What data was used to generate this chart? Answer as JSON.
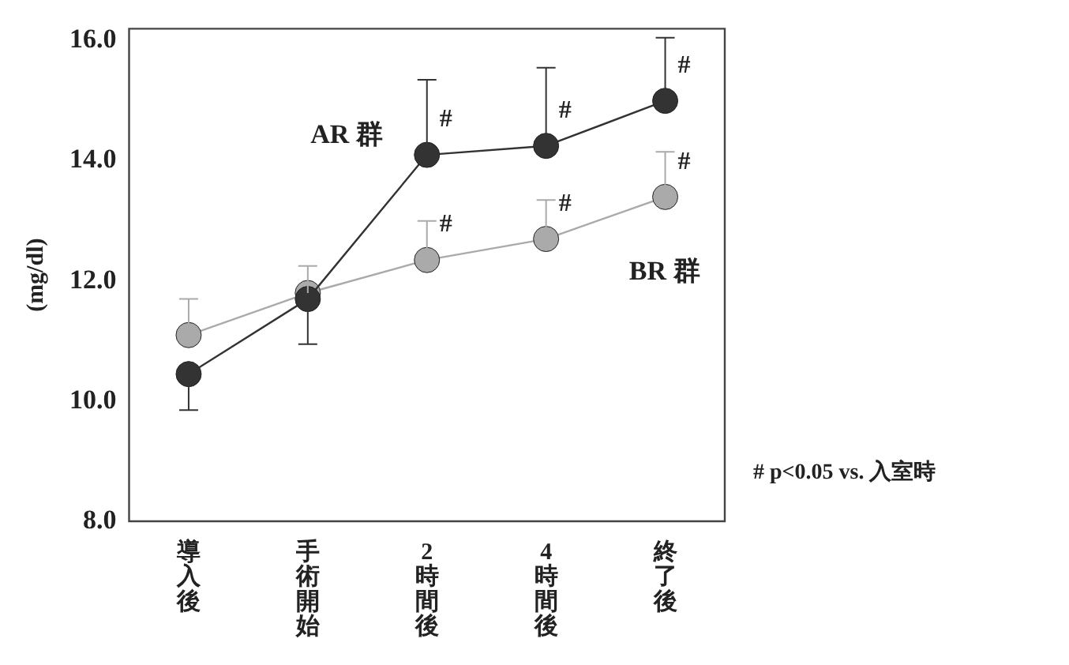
{
  "chart_data": {
    "type": "line",
    "ylabel": "(mg/dl)",
    "categories": [
      "導入後",
      "手術開始",
      "2時間後",
      "4時間後",
      "終了後"
    ],
    "series": [
      {
        "name": "AR 群",
        "color": "#333333",
        "values": [
          10.45,
          11.7,
          14.1,
          14.25,
          15.0
        ],
        "errors": [
          [
            9.85,
            10.45
          ],
          [
            10.95,
            11.7
          ],
          [
            14.1,
            15.35
          ],
          [
            14.25,
            15.55
          ],
          [
            15.0,
            16.05
          ]
        ]
      },
      {
        "name": "BR 群",
        "color": "#aaaaaa",
        "values": [
          11.1,
          11.8,
          12.35,
          12.7,
          13.4
        ],
        "errors": [
          [
            11.1,
            11.7
          ],
          [
            11.8,
            12.25
          ],
          [
            12.35,
            13.0
          ],
          [
            12.7,
            13.35
          ],
          [
            13.4,
            14.15
          ]
        ]
      }
    ],
    "ylim": [
      8,
      16.2
    ],
    "yticks": [
      {
        "value": 8,
        "label": "8.0"
      },
      {
        "value": 10,
        "label": "10.0"
      },
      {
        "value": 12,
        "label": "12.0"
      },
      {
        "value": 14,
        "label": "14.0"
      },
      {
        "value": 16,
        "label": "16.0"
      }
    ],
    "grid": false,
    "legend": false,
    "marker": "circle",
    "line_style": "solid",
    "annotations": [
      {
        "text": "#",
        "x": "2時間後",
        "y": 14.1
      },
      {
        "text": "#",
        "x": "4時間後",
        "y": 14.25
      },
      {
        "text": "#",
        "x": "終了後",
        "y": 15.0
      },
      {
        "text": "#",
        "x": "2時間後",
        "y": 12.35
      },
      {
        "text": "#",
        "x": "4時間後",
        "y": 12.7
      },
      {
        "text": "#",
        "x": "終了後",
        "y": 13.4
      },
      "# p<0.05 vs. 入室時"
    ]
  }
}
